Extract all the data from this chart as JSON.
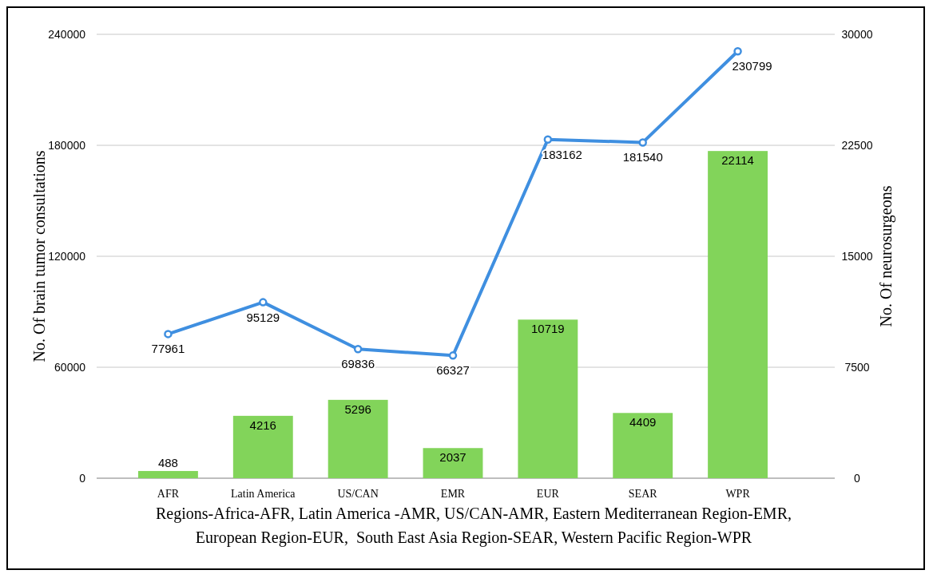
{
  "chart_data": {
    "type": "bar",
    "categories": [
      "AFR",
      "Latin America",
      "US/CAN",
      "EMR",
      "EUR",
      "SEAR",
      "WPR"
    ],
    "series": [
      {
        "axis": "y2",
        "color": "#82d45a",
        "values": [
          488,
          4216,
          5296,
          2037,
          10719,
          4409,
          22114
        ]
      },
      {
        "type": "line",
        "color": "#3f8fe0",
        "values": [
          77961,
          95129,
          69836,
          66327,
          183162,
          181540,
          230799
        ]
      }
    ],
    "ylabel": "No. Of brain tumor consultations",
    "y2label": "No. Of neurosurgeons",
    "xlabel": "Regions-Africa-AFR, Latin America -AMR, US/CAN-AMR, Eastern Mediterranean Region-EMR,\nEuropean Region-EUR,  South East Asia Region-SEAR, Western Pacific Region-WPR",
    "ylim": [
      0,
      240000
    ],
    "yticks": [
      0,
      60000,
      120000,
      180000,
      240000
    ],
    "y2lim": [
      0,
      30000
    ],
    "y2ticks": [
      0,
      7500,
      15000,
      22500,
      30000
    ],
    "grid": "y",
    "data_labels": true,
    "marker": "circle",
    "line_style": "solid"
  }
}
